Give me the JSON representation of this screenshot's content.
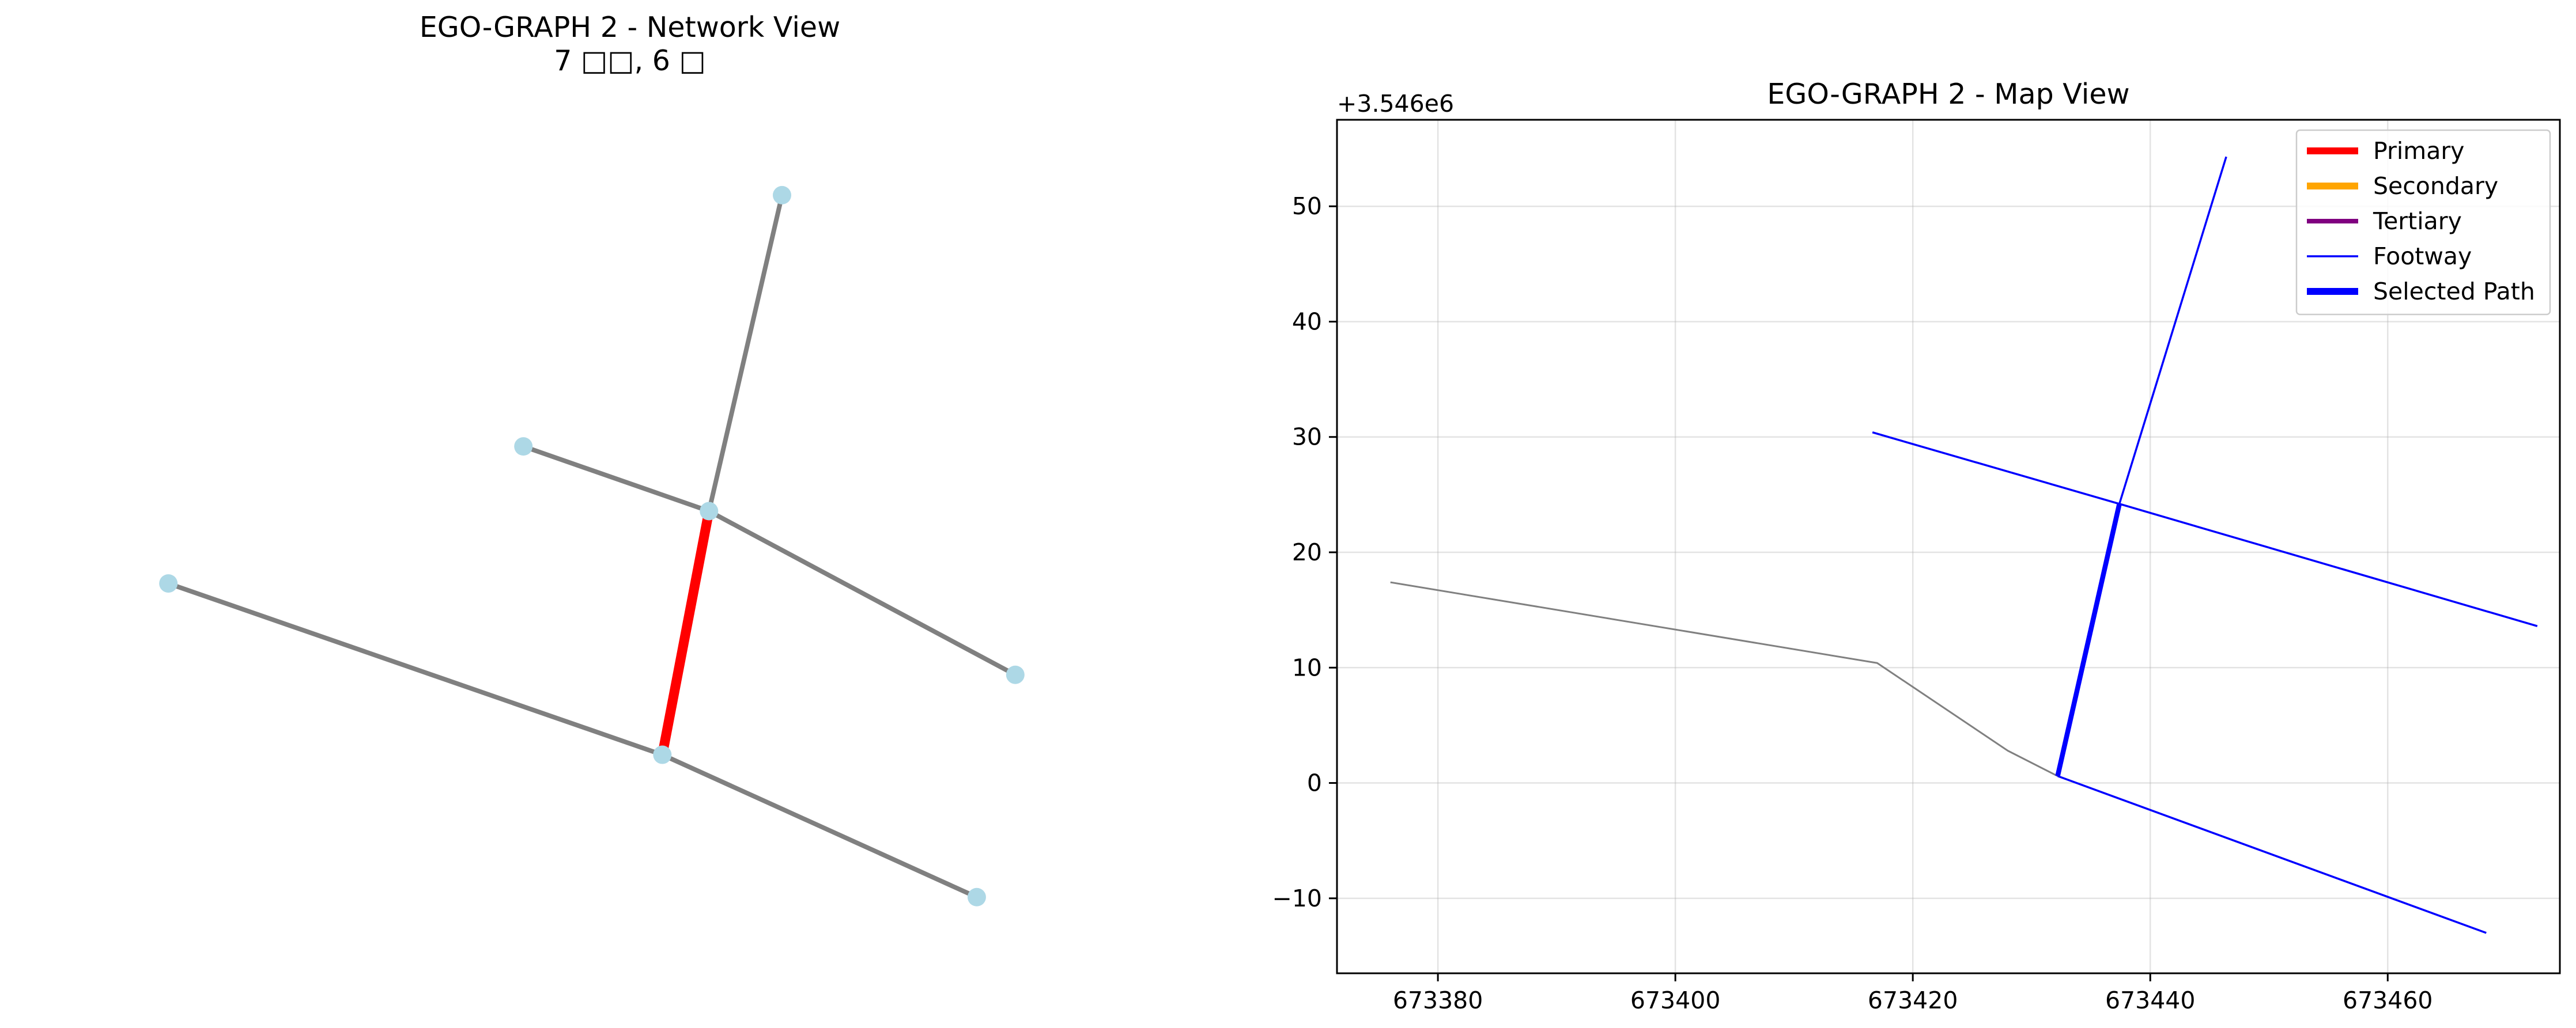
{
  "chart_data": [
    {
      "type": "network",
      "title_line1": "EGO-GRAPH 2 - Network View",
      "title_line2": "7 □□, 6 □",
      "colors": {
        "node": "#add8e6",
        "edge": "#808080",
        "highlight": "#ff0000"
      },
      "nodes": [
        {
          "id": "n1",
          "x": 0.65,
          "y": 0.96
        },
        {
          "id": "n2",
          "x": 0.395,
          "y": 0.63
        },
        {
          "id": "n3",
          "x": 0.578,
          "y": 0.545
        },
        {
          "id": "n4",
          "x": 0.045,
          "y": 0.45
        },
        {
          "id": "n5",
          "x": 0.88,
          "y": 0.33
        },
        {
          "id": "n6",
          "x": 0.532,
          "y": 0.225
        },
        {
          "id": "n7",
          "x": 0.842,
          "y": 0.038
        }
      ],
      "edges": [
        {
          "from": "n1",
          "to": "n3",
          "highlight": false
        },
        {
          "from": "n2",
          "to": "n3",
          "highlight": false
        },
        {
          "from": "n3",
          "to": "n5",
          "highlight": false
        },
        {
          "from": "n4",
          "to": "n6",
          "highlight": false
        },
        {
          "from": "n6",
          "to": "n7",
          "highlight": false
        },
        {
          "from": "n3",
          "to": "n6",
          "highlight": true
        }
      ]
    },
    {
      "type": "line",
      "title": "EGO-GRAPH 2 - Map View",
      "offset_label": "+3.546e6",
      "xlim": [
        673371.5,
        673474.5
      ],
      "ylim": [
        -16.5,
        57.5
      ],
      "xticks": [
        "673380",
        "673400",
        "673420",
        "673440",
        "673460"
      ],
      "xtick_values": [
        673380,
        673400,
        673420,
        673440,
        673460
      ],
      "yticks": [
        "−10",
        "0",
        "10",
        "20",
        "30",
        "40",
        "50"
      ],
      "ytick_values": [
        -10,
        0,
        10,
        20,
        30,
        40,
        50
      ],
      "grid": true,
      "legend_position": "top-right",
      "legend": [
        {
          "label": "Primary",
          "color": "#ff0000",
          "width": "thick"
        },
        {
          "label": "Secondary",
          "color": "#ffa500",
          "width": "thick"
        },
        {
          "label": "Tertiary",
          "color": "#800080",
          "width": "medium"
        },
        {
          "label": "Footway",
          "color": "#0000ff",
          "width": "thin"
        },
        {
          "label": "Selected Path",
          "color": "#0000ff",
          "width": "thick"
        }
      ],
      "series": [
        {
          "kind": "other",
          "color": "#808080",
          "points": [
            [
              673376,
              17.4
            ],
            [
              673417,
              10.4
            ],
            [
              673428,
              2.8
            ],
            [
              673432.2,
              0.6
            ]
          ]
        },
        {
          "name": "Footway",
          "color": "#0000ff",
          "points": [
            [
              673432.2,
              0.6
            ],
            [
              673468.3,
              -13.0
            ]
          ]
        },
        {
          "name": "Footway",
          "color": "#0000ff",
          "points": [
            [
              673416.6,
              30.4
            ],
            [
              673437.4,
              24.2
            ],
            [
              673472.6,
              13.6
            ]
          ]
        },
        {
          "name": "Footway",
          "color": "#0000ff",
          "points": [
            [
              673437.4,
              24.2
            ],
            [
              673446.4,
              54.3
            ]
          ]
        },
        {
          "name": "Selected Path",
          "color": "#0000ff",
          "points": [
            [
              673432.2,
              0.6
            ],
            [
              673437.4,
              24.2
            ]
          ]
        }
      ]
    }
  ]
}
